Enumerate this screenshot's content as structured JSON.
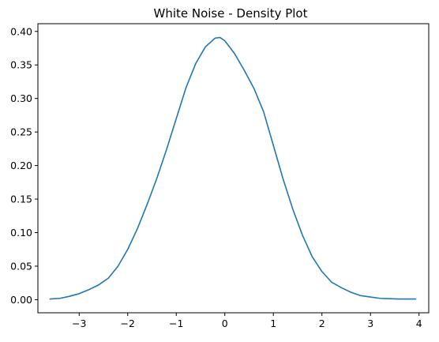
{
  "chart_data": {
    "type": "line",
    "title": "White Noise - Density Plot",
    "xlabel": "",
    "ylabel": "",
    "xlim": [
      -3.85,
      4.2
    ],
    "ylim": [
      -0.0195,
      0.4115
    ],
    "x_ticks": [
      -3,
      -2,
      -1,
      0,
      1,
      2,
      3,
      4
    ],
    "x_tick_labels": [
      "−3",
      "−2",
      "−1",
      "0",
      "1",
      "2",
      "3",
      "4"
    ],
    "y_ticks": [
      0.0,
      0.05,
      0.1,
      0.15,
      0.2,
      0.25,
      0.3,
      0.35,
      0.4
    ],
    "y_tick_labels": [
      "0.00",
      "0.05",
      "0.10",
      "0.15",
      "0.20",
      "0.25",
      "0.30",
      "0.35",
      "0.40"
    ],
    "grid": false,
    "legend": "none",
    "series": [
      {
        "color": "#1f77b4",
        "x": [
          -3.6,
          -3.4,
          -3.2,
          -3.0,
          -2.8,
          -2.6,
          -2.4,
          -2.2,
          -2.0,
          -1.8,
          -1.6,
          -1.4,
          -1.2,
          -1.0,
          -0.8,
          -0.6,
          -0.4,
          -0.2,
          -0.1,
          0.0,
          0.2,
          0.4,
          0.6,
          0.8,
          1.0,
          1.2,
          1.4,
          1.6,
          1.8,
          2.0,
          2.2,
          2.4,
          2.6,
          2.8,
          3.0,
          3.2,
          3.4,
          3.6,
          3.8,
          3.93
        ],
        "y": [
          0.001,
          0.002,
          0.005,
          0.009,
          0.015,
          0.022,
          0.032,
          0.05,
          0.075,
          0.106,
          0.142,
          0.181,
          0.224,
          0.27,
          0.316,
          0.352,
          0.377,
          0.39,
          0.391,
          0.386,
          0.367,
          0.342,
          0.315,
          0.28,
          0.23,
          0.18,
          0.135,
          0.096,
          0.064,
          0.042,
          0.026,
          0.018,
          0.011,
          0.006,
          0.004,
          0.002,
          0.0015,
          0.001,
          0.001,
          0.001
        ]
      }
    ]
  }
}
